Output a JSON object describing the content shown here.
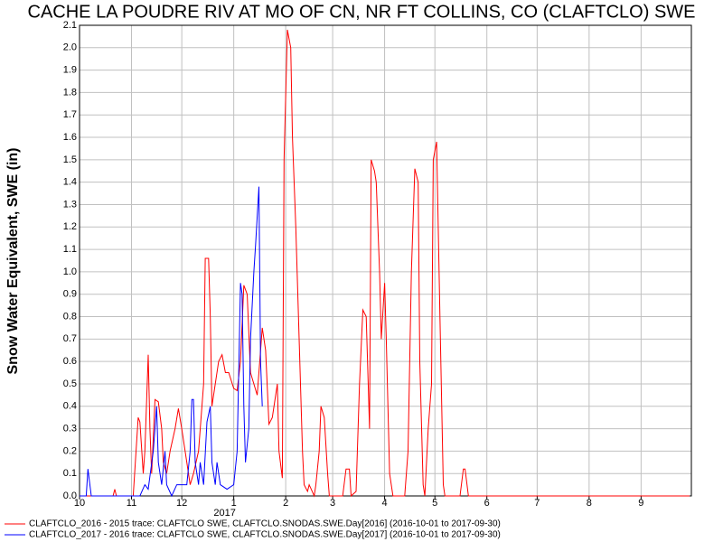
{
  "chart_data": {
    "type": "line",
    "title": "CACHE LA POUDRE RIV AT MO OF CN, NR FT COLLINS, CO (CLAFTCLO) SWE",
    "y_label": "Snow Water Equivalent, SWE (in)",
    "x_year_label": "2017",
    "xlim": [
      "2016-10-01",
      "2017-10-01"
    ],
    "xticks": [
      {
        "value": "2016-10-01",
        "label": "10"
      },
      {
        "value": "2016-11-01",
        "label": "11"
      },
      {
        "value": "2016-12-01",
        "label": "12"
      },
      {
        "value": "2017-01-01",
        "label": "1"
      },
      {
        "value": "2017-02-01",
        "label": "2"
      },
      {
        "value": "2017-03-01",
        "label": "3"
      },
      {
        "value": "2017-04-01",
        "label": "4"
      },
      {
        "value": "2017-05-01",
        "label": "5"
      },
      {
        "value": "2017-06-01",
        "label": "6"
      },
      {
        "value": "2017-07-01",
        "label": "7"
      },
      {
        "value": "2017-08-01",
        "label": "8"
      },
      {
        "value": "2017-09-01",
        "label": "9"
      }
    ],
    "ylim": [
      0,
      2.1
    ],
    "yticks": [
      {
        "value": 0,
        "label": "0.0"
      },
      0.1,
      0.2,
      0.3,
      0.4,
      0.5,
      0.6,
      0.7,
      0.8,
      0.9,
      {
        "value": 1,
        "label": "1.0"
      },
      1.1,
      1.2,
      1.3,
      1.4,
      1.5,
      1.6,
      1.7,
      1.8,
      1.9,
      {
        "value": 2,
        "label": "2.0"
      },
      2.1
    ],
    "grid": true,
    "series": [
      {
        "name": "CLAFTCLO_2016 - 2015 trace: CLAFTCLO SWE, CLAFTCLO.SNODAS.SWE.Day[2016] (2016-10-01 to 2017-09-30)",
        "color": "#ff0000",
        "x": [
          "2016-10-01",
          "2016-10-21",
          "2016-10-22",
          "2016-10-23",
          "2016-11-02",
          "2016-11-05",
          "2016-11-06",
          "2016-11-08",
          "2016-11-09",
          "2016-11-11",
          "2016-11-12",
          "2016-11-13",
          "2016-11-15",
          "2016-11-17",
          "2016-11-19",
          "2016-11-20",
          "2016-11-22",
          "2016-11-24",
          "2016-11-27",
          "2016-11-29",
          "2016-12-01",
          "2016-12-04",
          "2016-12-06",
          "2016-12-08",
          "2016-12-11",
          "2016-12-14",
          "2016-12-15",
          "2016-12-17",
          "2016-12-18",
          "2016-12-19",
          "2016-12-21",
          "2016-12-23",
          "2016-12-25",
          "2016-12-27",
          "2016-12-29",
          "2017-01-01",
          "2017-01-03",
          "2017-01-05",
          "2017-01-07",
          "2017-01-09",
          "2017-01-11",
          "2017-01-13",
          "2017-01-15",
          "2017-01-18",
          "2017-01-20",
          "2017-01-22",
          "2017-01-24",
          "2017-01-27",
          "2017-01-28",
          "2017-01-30",
          "2017-01-31",
          "2017-02-02",
          "2017-02-04",
          "2017-02-05",
          "2017-02-07",
          "2017-02-09",
          "2017-02-11",
          "2017-02-12",
          "2017-02-14",
          "2017-02-15",
          "2017-02-18",
          "2017-02-19",
          "2017-02-21",
          "2017-02-22",
          "2017-02-24",
          "2017-02-26",
          "2017-02-27",
          "2017-03-07",
          "2017-03-09",
          "2017-03-11",
          "2017-03-12",
          "2017-03-15",
          "2017-03-17",
          "2017-03-19",
          "2017-03-21",
          "2017-03-23",
          "2017-03-24",
          "2017-03-26",
          "2017-03-27",
          "2017-03-29",
          "2017-03-30",
          "2017-04-01",
          "2017-04-02",
          "2017-04-04",
          "2017-04-06",
          "2017-04-13",
          "2017-04-15",
          "2017-04-17",
          "2017-04-19",
          "2017-04-21",
          "2017-04-22",
          "2017-04-24",
          "2017-04-25",
          "2017-04-27",
          "2017-04-29",
          "2017-04-30",
          "2017-05-02",
          "2017-05-04",
          "2017-05-06",
          "2017-05-07",
          "2017-05-16",
          "2017-05-18",
          "2017-05-19",
          "2017-05-21",
          "2017-09-30"
        ],
        "values": [
          0,
          0,
          0.03,
          0,
          0,
          0.35,
          0.33,
          0.1,
          0.2,
          0.63,
          0.3,
          0.1,
          0.43,
          0.42,
          0.3,
          0.15,
          0.1,
          0.2,
          0.3,
          0.39,
          0.3,
          0.15,
          0.05,
          0.1,
          0.2,
          0.5,
          1.06,
          1.06,
          0.8,
          0.4,
          0.5,
          0.6,
          0.63,
          0.55,
          0.55,
          0.48,
          0.47,
          0.6,
          0.94,
          0.9,
          0.55,
          0.5,
          0.45,
          0.75,
          0.65,
          0.32,
          0.35,
          0.5,
          0.2,
          0.08,
          1.5,
          2.08,
          2.0,
          1.6,
          1.2,
          0.7,
          0.2,
          0.05,
          0.02,
          0.05,
          0,
          0.05,
          0.2,
          0.4,
          0.35,
          0.1,
          0,
          0,
          0.12,
          0.12,
          0,
          0.02,
          0.5,
          0.83,
          0.8,
          0.3,
          1.5,
          1.45,
          1.4,
          1.0,
          0.7,
          0.95,
          0.7,
          0.1,
          0,
          0,
          0.2,
          1.0,
          1.46,
          1.4,
          0.6,
          0.05,
          0,
          0.3,
          0.5,
          1.5,
          1.58,
          0.8,
          0.05,
          0,
          0,
          0.12,
          0.12,
          0,
          0
        ]
      },
      {
        "name": "CLAFTCLO_2017 - 2016 trace: CLAFTCLO SWE, CLAFTCLO.SNODAS.SWE.Day[2017] (2016-10-01 to 2017-09-30)",
        "color": "#0000ff",
        "x": [
          "2016-10-01",
          "2016-10-05",
          "2016-10-06",
          "2016-10-08",
          "2016-10-29",
          "2016-11-06",
          "2016-11-09",
          "2016-11-11",
          "2016-11-14",
          "2016-11-16",
          "2016-11-17",
          "2016-11-19",
          "2016-11-21",
          "2016-11-22",
          "2016-11-25",
          "2016-11-28",
          "2016-12-04",
          "2016-12-06",
          "2016-12-07",
          "2016-12-08",
          "2016-12-09",
          "2016-12-11",
          "2016-12-12",
          "2016-12-14",
          "2016-12-16",
          "2016-12-18",
          "2016-12-19",
          "2016-12-21",
          "2016-12-22",
          "2016-12-24",
          "2016-12-28",
          "2017-01-01",
          "2017-01-03",
          "2017-01-05",
          "2017-01-06",
          "2017-01-07",
          "2017-01-08",
          "2017-01-10",
          "2017-01-11",
          "2017-01-13",
          "2017-01-14",
          "2017-01-16",
          "2017-01-17",
          "2017-01-18"
        ],
        "values": [
          0,
          0,
          0.12,
          0,
          0,
          0,
          0.05,
          0.03,
          0.2,
          0.4,
          0.15,
          0.05,
          0.2,
          0.05,
          0,
          0.05,
          0.05,
          0.2,
          0.43,
          0.43,
          0.15,
          0.05,
          0.15,
          0.05,
          0.33,
          0.4,
          0.15,
          0.05,
          0.15,
          0.05,
          0.03,
          0.05,
          0.2,
          0.95,
          0.9,
          0.4,
          0.15,
          0.3,
          0.7,
          1.0,
          1.12,
          1.38,
          0.6,
          0.4
        ]
      }
    ]
  }
}
